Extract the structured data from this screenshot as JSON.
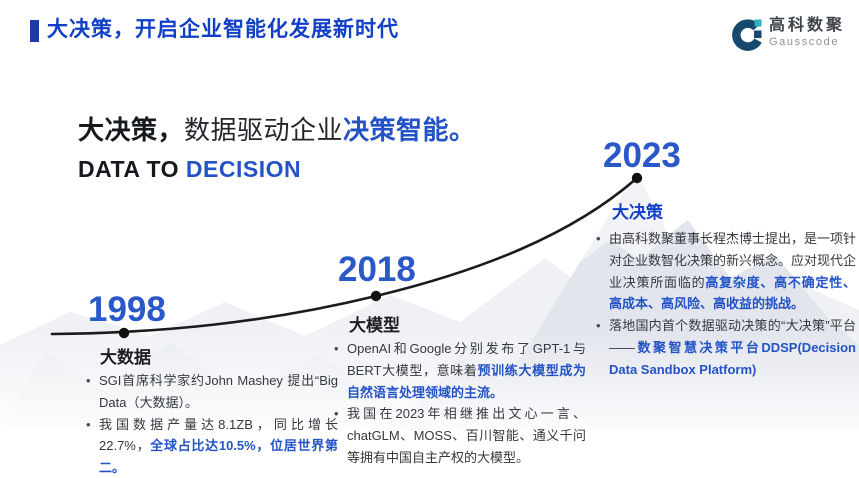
{
  "colors": {
    "accent_blue": "#1140c6",
    "bar_blue": "#1b3ca8",
    "year_blue": "#2a58c8",
    "text_blue": "#2353c6",
    "curve_black": "#1b1b1b",
    "logo_navy": "#17496e",
    "logo_teal": "#2cb0c2",
    "mountain_light": "#eef0f4",
    "mountain_mid": "#dfe3ea"
  },
  "header": {
    "title": "大决策，开启企业智能化发展新时代"
  },
  "logo": {
    "name_zh": "高科数聚",
    "name_en": "Gausscode",
    "icon": "gausscode-g-icon"
  },
  "headline": {
    "zh_segments": [
      {
        "t": "大决策，",
        "c": "d"
      },
      {
        "t": "数据驱动企业",
        "c": "m"
      },
      {
        "t": "决策智能。",
        "c": "b"
      }
    ],
    "en_segments": [
      {
        "t": "DATA TO ",
        "c": "d"
      },
      {
        "t": "DECISION",
        "c": "b"
      }
    ]
  },
  "timeline": {
    "events": [
      {
        "year": "1998",
        "title": "大数据",
        "bullets": [
          [
            {
              "t": "SGI首席科学家约John Mashey 提出“Big Data（大数据）。",
              "c": "n"
            }
          ],
          [
            {
              "t": "我国数据产量达8.1ZB，同比增长22.7%，",
              "c": "n"
            },
            {
              "t": "全球占比达10.5%，位居世界第二。",
              "c": "b"
            }
          ]
        ]
      },
      {
        "year": "2018",
        "title": "大模型",
        "bullets": [
          [
            {
              "t": "OpenAI和Google分别发布了GPT-1与BERT大模型，意味着",
              "c": "n"
            },
            {
              "t": "预训练大模型成为自然语言处理领域的主流。",
              "c": "b"
            }
          ],
          [
            {
              "t": "我国在2023年相继推出文心一言、chatGLM、MOSS、百川智能、通义千问等拥有中国自主产权的大模型。",
              "c": "n"
            }
          ]
        ]
      },
      {
        "year": "2023",
        "title": "大决策",
        "bullets": [
          [
            {
              "t": "由高科数聚董事长程杰博士提出，是一项针对企业数智化决策的新兴概念。应对现代企业决策所面临的",
              "c": "n"
            },
            {
              "t": "高复杂度、高不确定性、高成本、高风险、高收益的挑战。",
              "c": "b"
            }
          ],
          [
            {
              "t": "落地国内首个数据驱动决策的“大决策”平台——",
              "c": "n"
            },
            {
              "t": "数聚智慧决策平台DDSP(Decision Data Sandbox Platform)",
              "c": "b"
            }
          ]
        ]
      }
    ]
  }
}
